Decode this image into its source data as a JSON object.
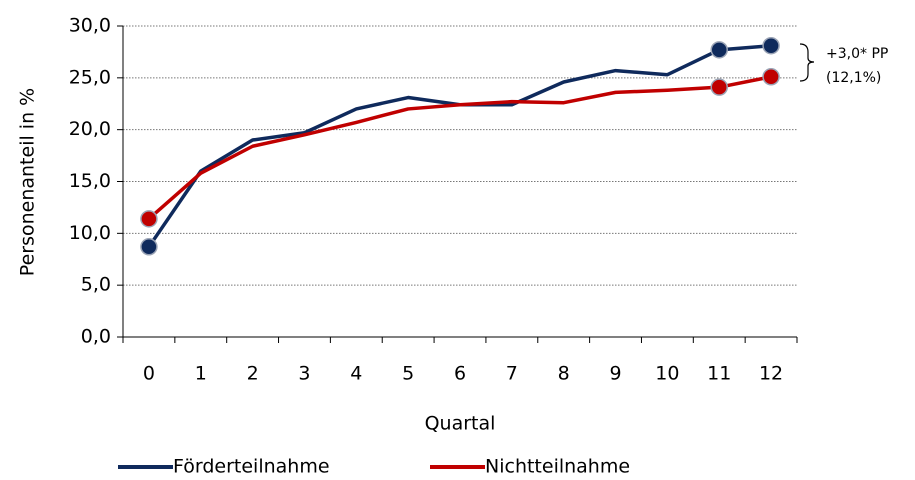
{
  "chart_data": {
    "type": "line",
    "y_label": "Personenanteil in %",
    "x_label": "Quartal",
    "categories": [
      "0",
      "1",
      "2",
      "3",
      "4",
      "5",
      "6",
      "7",
      "8",
      "9",
      "10",
      "11",
      "12"
    ],
    "series": [
      {
        "name": "Förderteilnahme",
        "color": "#0f2a5c",
        "values": [
          8.7,
          16.0,
          19.0,
          19.7,
          22.0,
          23.1,
          22.4,
          22.4,
          24.6,
          25.7,
          25.3,
          27.7,
          28.1
        ],
        "markers": [
          0,
          11,
          12
        ]
      },
      {
        "name": "Nichtteilnahme",
        "color": "#c00000",
        "values": [
          11.4,
          15.8,
          18.4,
          19.5,
          20.7,
          22.0,
          22.4,
          22.7,
          22.6,
          23.6,
          23.8,
          24.1,
          25.1
        ],
        "markers": [
          0,
          11,
          12
        ]
      }
    ],
    "ylim": [
      0,
      30
    ],
    "yticks": [
      {
        "value": 0,
        "label": "0,0"
      },
      {
        "value": 5,
        "label": "5,0"
      },
      {
        "value": 10,
        "label": "10,0"
      },
      {
        "value": 15,
        "label": "15,0"
      },
      {
        "value": 20,
        "label": "20,0"
      },
      {
        "value": 25,
        "label": "25,0"
      },
      {
        "value": 30,
        "label": "30,0"
      }
    ],
    "grid": true,
    "legend": "bottom",
    "annotations": [
      "+3,0* PP",
      "(12,1%)"
    ]
  }
}
